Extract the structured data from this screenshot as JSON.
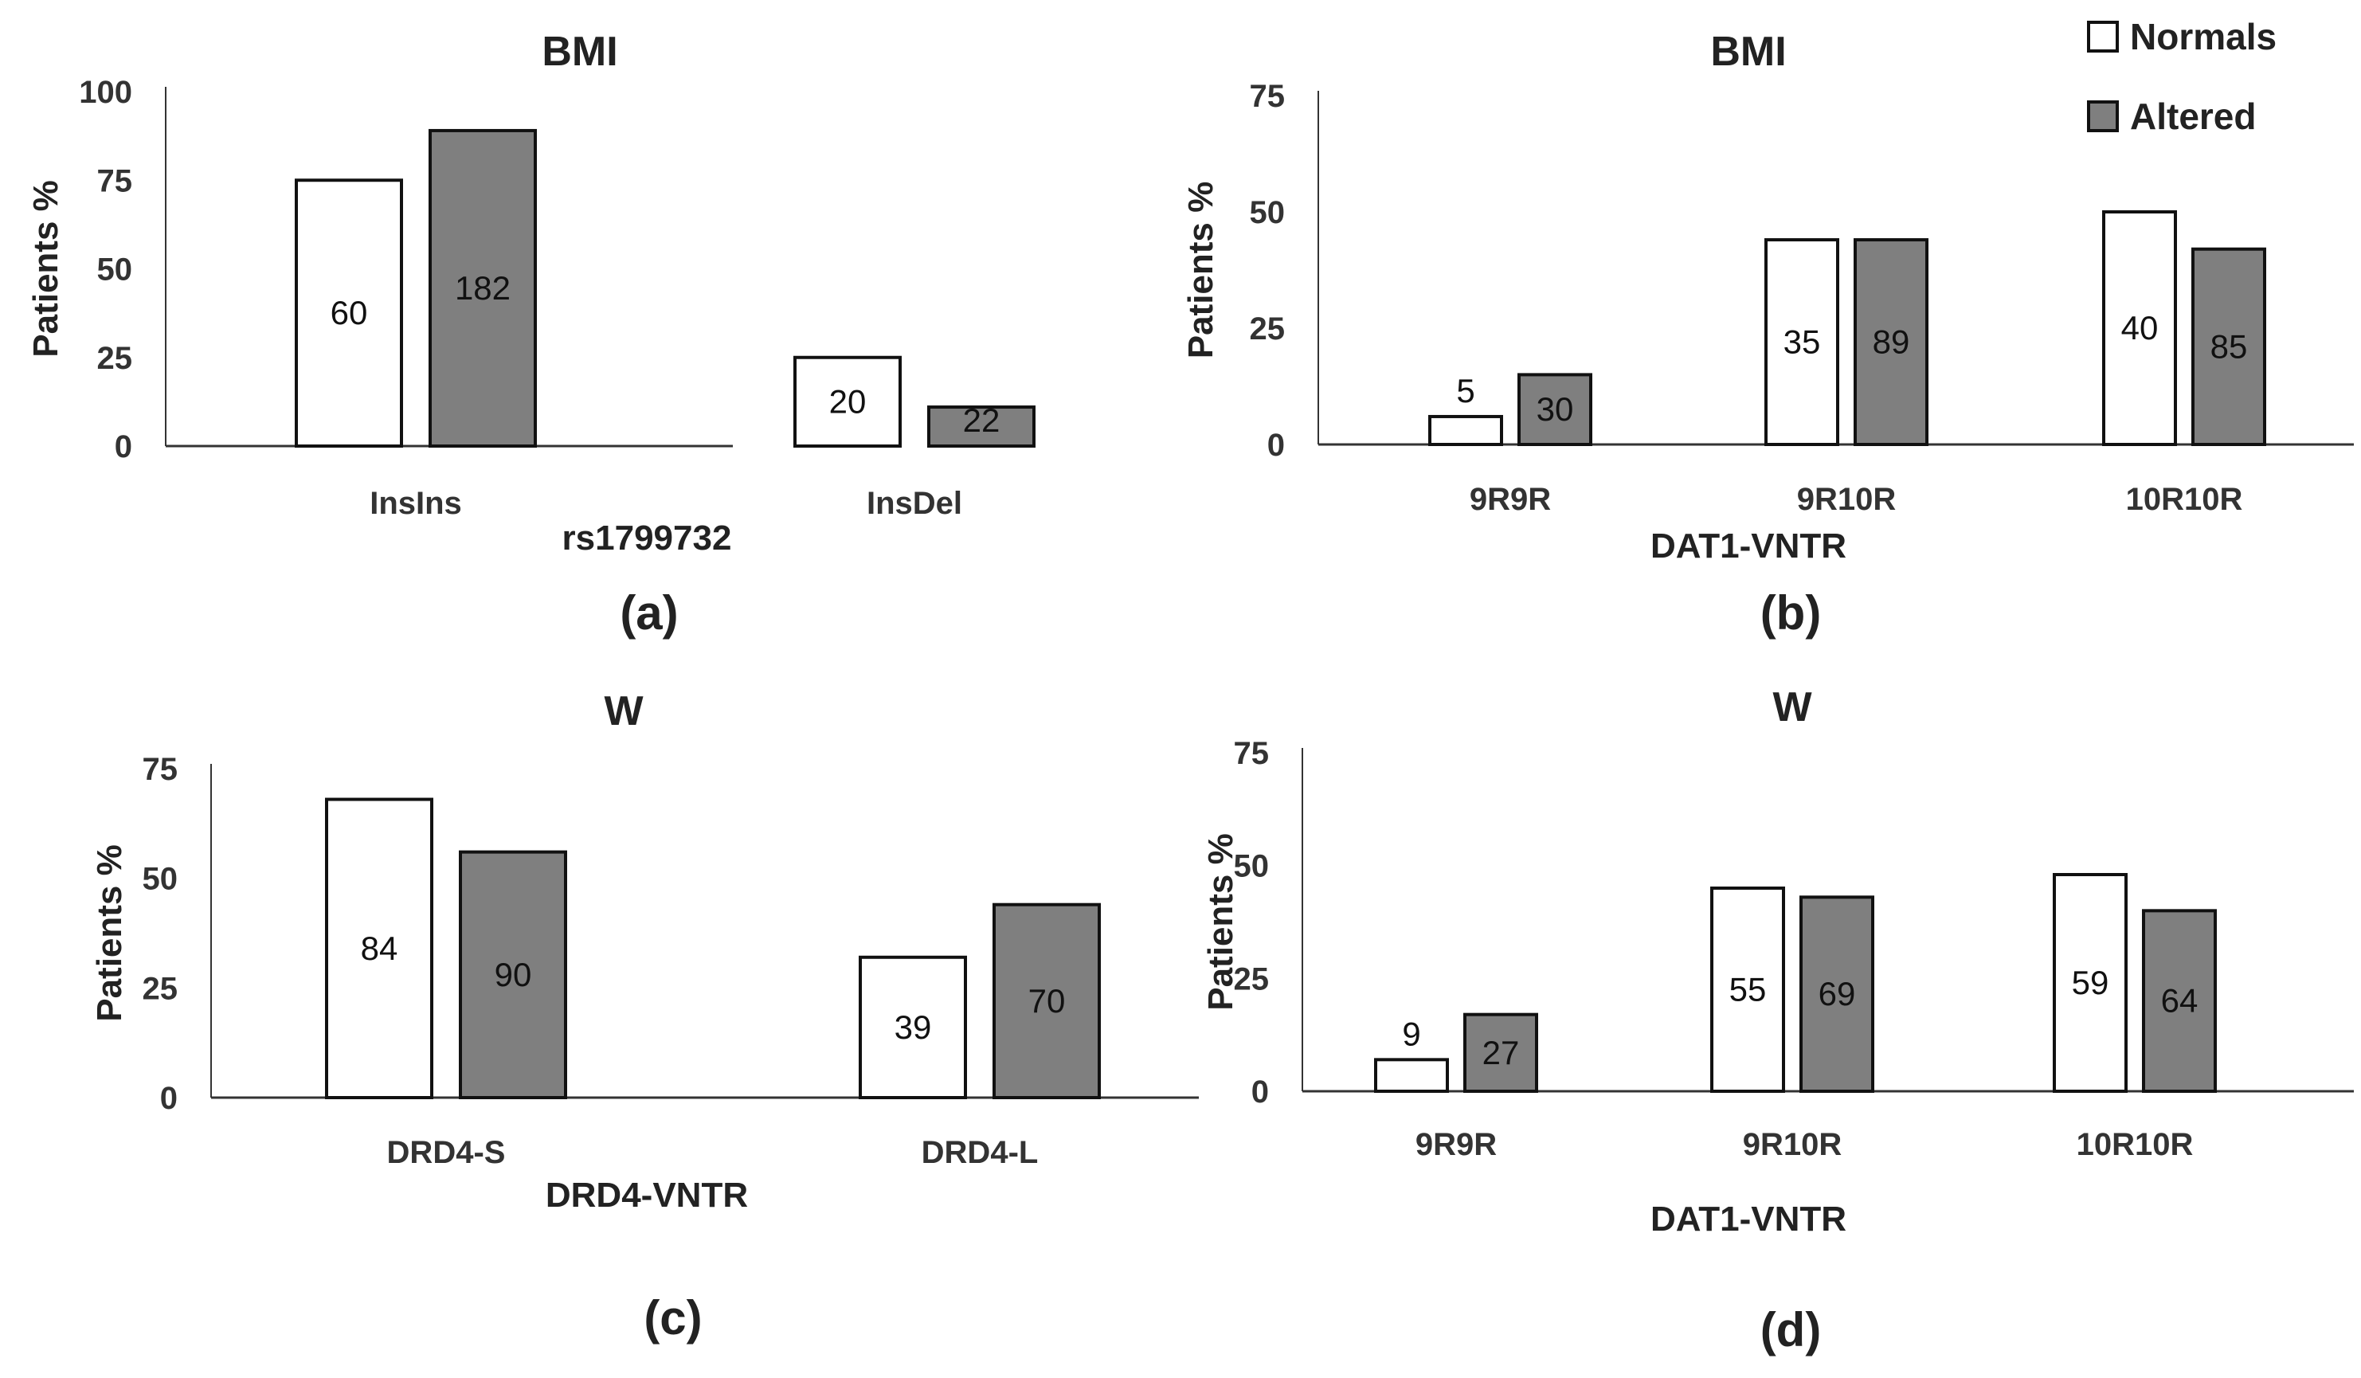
{
  "colors": {
    "normals": "#ffffff",
    "altered": "#7f7f7f",
    "stroke": "#111111",
    "axis": "#333333"
  },
  "legend": [
    {
      "name": "Normals",
      "color": "#ffffff"
    },
    {
      "name": "Altered",
      "color": "#7f7f7f"
    }
  ],
  "chart_data": [
    {
      "type": "bar",
      "panel_label": "(a)",
      "title": "BMI",
      "ylabel": "Patients %",
      "xlabel": "rs1799732",
      "ylim": [
        0,
        100
      ],
      "yticks": [
        0,
        25,
        50,
        75,
        100
      ],
      "categories": [
        "InsIns",
        "InsDel"
      ],
      "series": [
        {
          "name": "Normals",
          "values": [
            75,
            25
          ],
          "labels": [
            "60",
            "20"
          ]
        },
        {
          "name": "Altered",
          "values": [
            89,
            11
          ],
          "labels": [
            "182",
            "22"
          ]
        }
      ]
    },
    {
      "type": "bar",
      "panel_label": "(b)",
      "title": "BMI",
      "ylabel": "Patients %",
      "xlabel": "DAT1-VNTR",
      "ylim": [
        0,
        75
      ],
      "yticks": [
        0,
        25,
        50,
        75
      ],
      "categories": [
        "9R9R",
        "9R10R",
        "10R10R"
      ],
      "series": [
        {
          "name": "Normals",
          "values": [
            6,
            44,
            50
          ],
          "labels": [
            "5",
            "35",
            "40"
          ]
        },
        {
          "name": "Altered",
          "values": [
            15,
            44,
            42
          ],
          "labels": [
            "30",
            "89",
            "85"
          ]
        }
      ]
    },
    {
      "type": "bar",
      "panel_label": "(c)",
      "title": "W",
      "ylabel": "Patients %",
      "xlabel": "DRD4-VNTR",
      "ylim": [
        0,
        75
      ],
      "yticks": [
        0,
        25,
        50,
        75
      ],
      "categories": [
        "DRD4-S",
        "DRD4-L"
      ],
      "series": [
        {
          "name": "Normals",
          "values": [
            68,
            32
          ],
          "labels": [
            "84",
            "39"
          ]
        },
        {
          "name": "Altered",
          "values": [
            56,
            44
          ],
          "labels": [
            "90",
            "70"
          ]
        }
      ]
    },
    {
      "type": "bar",
      "panel_label": "(d)",
      "title": "W",
      "ylabel": "Patients %",
      "xlabel": "DAT1-VNTR",
      "ylim": [
        0,
        75
      ],
      "yticks": [
        0,
        25,
        50,
        75
      ],
      "categories": [
        "9R9R",
        "9R10R",
        "10R10R"
      ],
      "series": [
        {
          "name": "Normals",
          "values": [
            7,
            45,
            48
          ],
          "labels": [
            "9",
            "55",
            "59"
          ]
        },
        {
          "name": "Altered",
          "values": [
            17,
            43,
            40
          ],
          "labels": [
            "27",
            "69",
            "64"
          ]
        }
      ]
    }
  ]
}
